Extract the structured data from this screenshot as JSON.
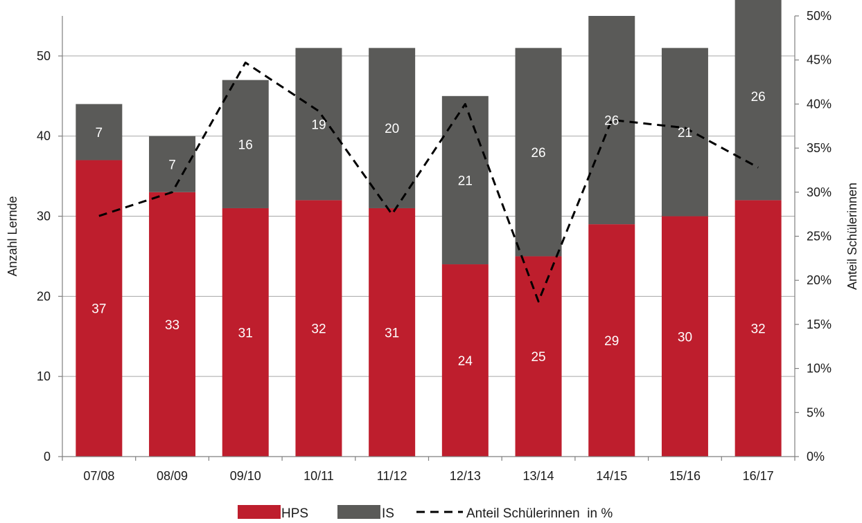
{
  "chart_data": {
    "type": "bar",
    "stacked": true,
    "categories": [
      "07/08",
      "08/09",
      "09/10",
      "10/11",
      "11/12",
      "12/13",
      "13/14",
      "14/15",
      "15/16",
      "16/17"
    ],
    "series": [
      {
        "name": "HPS",
        "values": [
          37,
          33,
          31,
          32,
          31,
          24,
          25,
          29,
          30,
          32
        ],
        "color": "#be1e2d"
      },
      {
        "name": "IS",
        "values": [
          7,
          7,
          16,
          19,
          20,
          21,
          26,
          26,
          21,
          26
        ],
        "color": "#5a5a58"
      }
    ],
    "line_series": {
      "name": "Anteil Schülerinnen  in %",
      "values": [
        27.3,
        30.0,
        44.7,
        39.2,
        27.5,
        40.0,
        17.6,
        38.2,
        37.3,
        32.8
      ],
      "axis": "right",
      "style": "dashed",
      "color": "#000000"
    },
    "ylabel": "Anzahl Lernde",
    "y2label": "Anteil Schülerinnen",
    "ylim": [
      0,
      55
    ],
    "y_ticks": [
      "0",
      "10",
      "20",
      "30",
      "40",
      "50"
    ],
    "y2lim": [
      0,
      50
    ],
    "y2_ticks": [
      "0%",
      "5%",
      "10%",
      "15%",
      "20%",
      "25%",
      "30%",
      "35%",
      "40%",
      "45%",
      "50%"
    ],
    "grid": true,
    "legend_position": "bottom"
  }
}
